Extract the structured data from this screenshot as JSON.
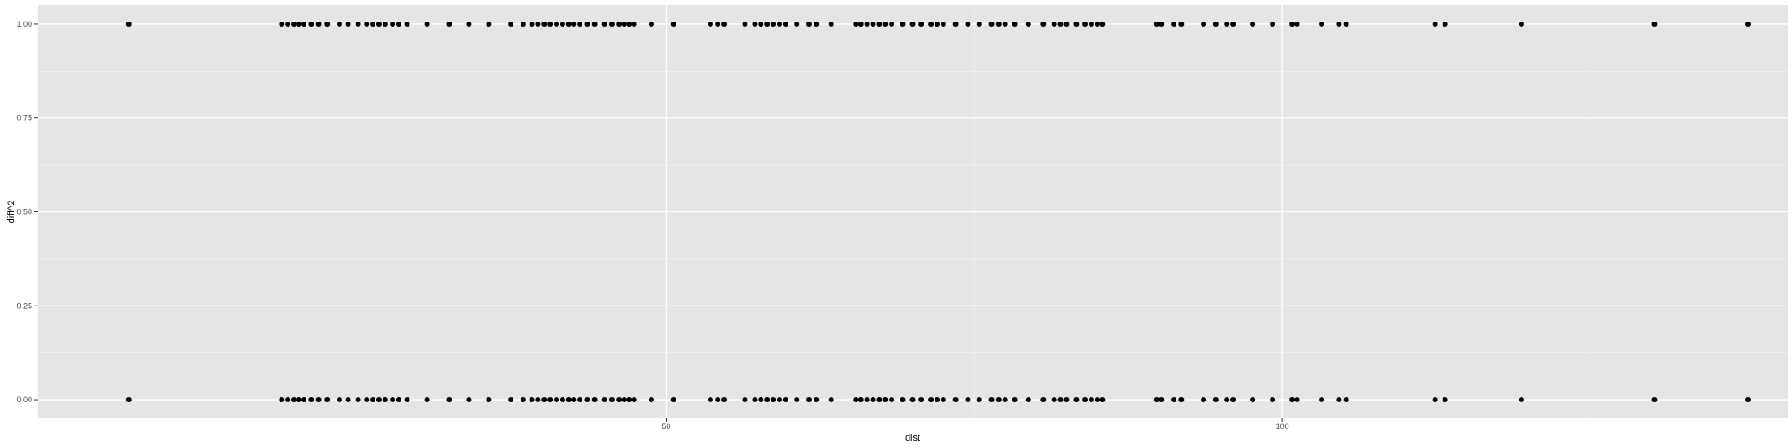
{
  "chart_data": {
    "type": "scatter",
    "title": "",
    "xlabel": "dist",
    "ylabel": "diff^2",
    "xlim": [
      -1,
      141
    ],
    "ylim": [
      -0.05,
      1.05
    ],
    "x_ticks": [
      50,
      100
    ],
    "x_tick_labels": [
      "50",
      "100"
    ],
    "x_minor_ticks": [
      25,
      75,
      125
    ],
    "y_ticks": [
      0,
      0.25,
      0.5,
      0.75,
      1
    ],
    "y_tick_labels": [
      "0.00",
      "0.25",
      "0.50",
      "0.75",
      "1.00"
    ],
    "grid": true,
    "legend": "none",
    "series": [
      {
        "name": "diff^2",
        "x": [
          6.4,
          18.8,
          19.3,
          19.8,
          20.2,
          20.6,
          21.2,
          21.8,
          22.5,
          23.5,
          24.2,
          25.0,
          25.7,
          26.2,
          26.7,
          27.2,
          27.8,
          28.3,
          29.0,
          30.6,
          32.4,
          34.0,
          35.6,
          37.4,
          38.4,
          39.1,
          39.6,
          40.1,
          40.6,
          41.1,
          41.6,
          42.1,
          42.5,
          43.0,
          43.6,
          44.2,
          45.0,
          45.6,
          46.2,
          46.6,
          47.0,
          47.4,
          48.8,
          50.6,
          53.6,
          54.2,
          54.7,
          56.4,
          57.2,
          57.7,
          58.2,
          58.7,
          59.2,
          59.7,
          60.6,
          61.6,
          62.2,
          63.4,
          65.4,
          65.8,
          66.3,
          66.8,
          67.3,
          67.8,
          68.3,
          69.2,
          70.0,
          70.7,
          71.5,
          72.0,
          72.5,
          73.5,
          74.5,
          75.4,
          76.4,
          77.0,
          77.5,
          78.3,
          79.4,
          80.6,
          81.5,
          82.0,
          82.5,
          83.3,
          84.0,
          84.5,
          85.0,
          85.4,
          89.8,
          90.2,
          91.2,
          91.8,
          93.6,
          94.6,
          95.5,
          96.0,
          97.6,
          99.2,
          100.8,
          101.2,
          103.2,
          104.6,
          105.2,
          112.4,
          113.2,
          119.4,
          130.2,
          137.8
        ]
      }
    ]
  }
}
